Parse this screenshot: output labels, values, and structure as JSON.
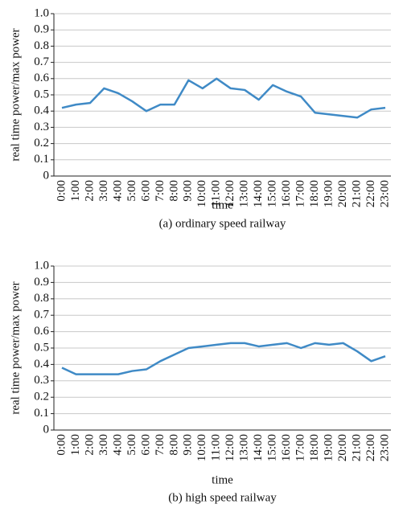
{
  "chart_data": [
    {
      "type": "line",
      "y_label": "real time power/max power",
      "x_label": "time",
      "caption": "(a) ordinary speed railway",
      "categories": [
        "0:00",
        "1:00",
        "2:00",
        "3:00",
        "4:00",
        "5:00",
        "6:00",
        "7:00",
        "8:00",
        "9:00",
        "10:00",
        "11:00",
        "12:00",
        "13:00",
        "14:00",
        "15:00",
        "16:00",
        "17:00",
        "18:00",
        "19:00",
        "20:00",
        "21:00",
        "22:00",
        "23:00"
      ],
      "values": [
        0.42,
        0.44,
        0.45,
        0.54,
        0.51,
        0.46,
        0.4,
        0.44,
        0.44,
        0.59,
        0.54,
        0.6,
        0.54,
        0.53,
        0.47,
        0.56,
        0.52,
        0.49,
        0.39,
        0.38,
        0.37,
        0.36,
        0.41,
        0.42
      ],
      "color": "#3f8ac6",
      "ylim": [
        0,
        1
      ],
      "yticks": [
        0,
        0.1,
        0.2,
        0.3,
        0.4,
        0.5,
        0.6,
        0.7,
        0.8,
        0.9,
        {
          "value": 1,
          "label": "1.0"
        }
      ],
      "grid": true
    },
    {
      "type": "line",
      "y_label": "real time power/max power",
      "x_label": "time",
      "caption": "(b) high speed railway",
      "categories": [
        "0:00",
        "1:00",
        "2:00",
        "3:00",
        "4:00",
        "5:00",
        "6:00",
        "7:00",
        "8:00",
        "9:00",
        "10:00",
        "11:00",
        "12:00",
        "13:00",
        "14:00",
        "15:00",
        "16:00",
        "17:00",
        "18:00",
        "19:00",
        "20:00",
        "21:00",
        "22:00",
        "23:00"
      ],
      "values": [
        0.38,
        0.34,
        0.34,
        0.34,
        0.34,
        0.36,
        0.37,
        0.42,
        0.46,
        0.5,
        0.51,
        0.52,
        0.53,
        0.53,
        0.51,
        0.52,
        0.53,
        0.5,
        0.53,
        0.52,
        0.53,
        0.48,
        0.42,
        0.45
      ],
      "color": "#3f8ac6",
      "ylim": [
        0,
        1
      ],
      "yticks": [
        0,
        0.1,
        0.2,
        0.3,
        0.4,
        0.5,
        0.6,
        0.7,
        0.8,
        0.9,
        {
          "value": 1,
          "label": "1.0"
        }
      ],
      "grid": true
    }
  ]
}
